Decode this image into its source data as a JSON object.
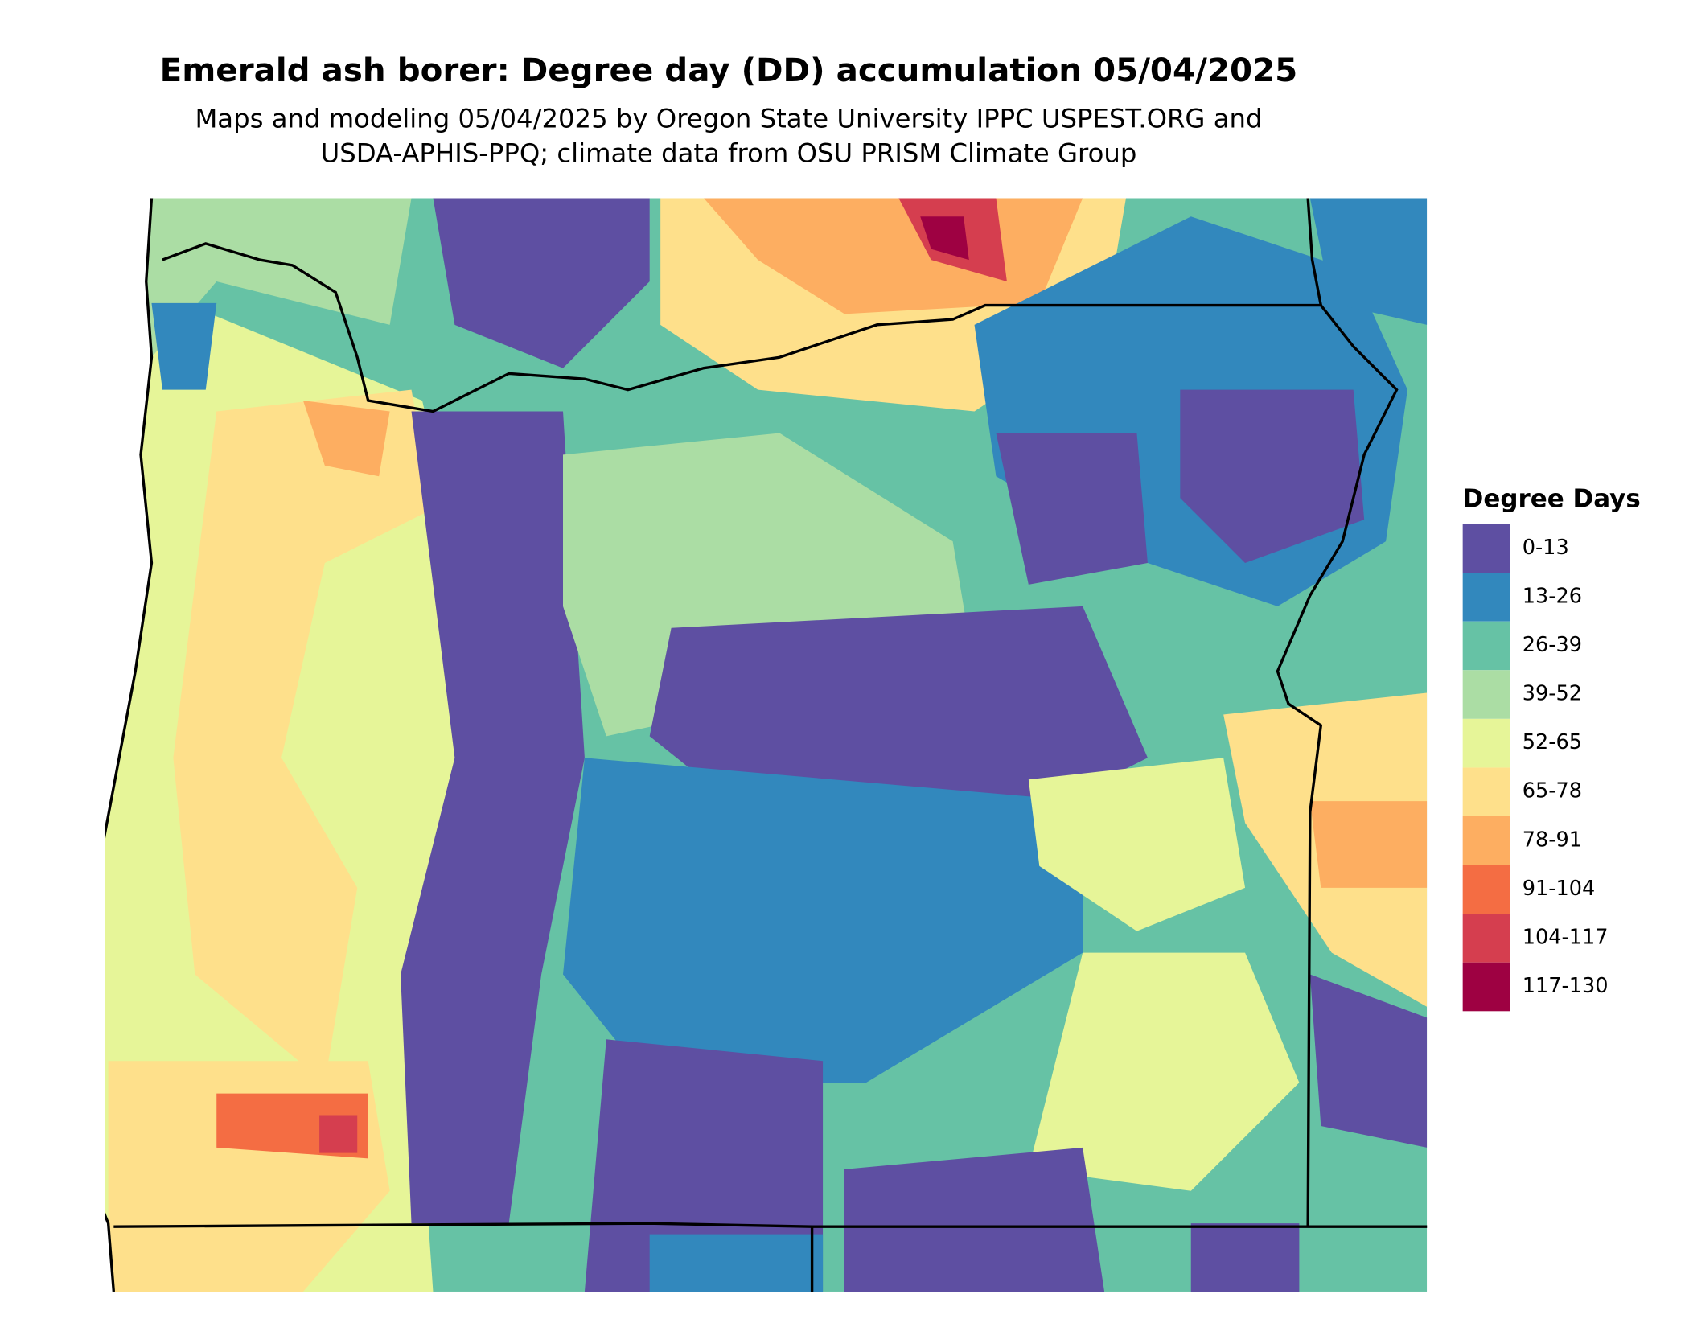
{
  "title": "Emerald ash borer: Degree day (DD) accumulation 05/04/2025",
  "subtitle": [
    "Maps and modeling 05/04/2025 by Oregon State University IPPC USPEST.ORG and",
    "USDA-APHIS-PPQ; climate data from OSU PRISM Climate Group"
  ],
  "legend": {
    "title": "Degree Days",
    "items": [
      {
        "label": "0-13",
        "color": "#5E4FA2"
      },
      {
        "label": "13-26",
        "color": "#3288BD"
      },
      {
        "label": "26-39",
        "color": "#66C2A5"
      },
      {
        "label": "39-52",
        "color": "#ABDDA4"
      },
      {
        "label": "52-65",
        "color": "#E6F598"
      },
      {
        "label": "65-78",
        "color": "#FEE08B"
      },
      {
        "label": "78-91",
        "color": "#FDAE61"
      },
      {
        "label": "91-104",
        "color": "#F46D43"
      },
      {
        "label": "104-117",
        "color": "#D53E4F"
      },
      {
        "label": "117-130",
        "color": "#9E0142"
      }
    ]
  }
}
